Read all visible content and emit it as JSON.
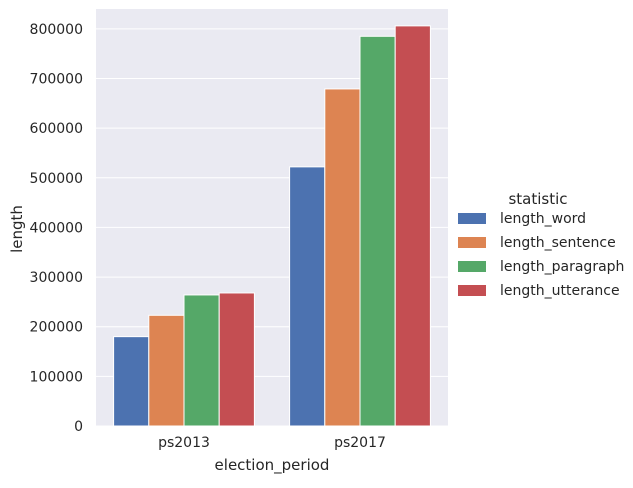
{
  "chart_data": {
    "type": "bar",
    "xlabel": "election_period",
    "ylabel": "length",
    "categories": [
      "ps2013",
      "ps2017"
    ],
    "ylim": [
      0,
      840000
    ],
    "yticks": [
      0,
      100000,
      200000,
      300000,
      400000,
      500000,
      600000,
      700000,
      800000
    ],
    "ytick_labels": [
      "0",
      "100000",
      "200000",
      "300000",
      "400000",
      "500000",
      "600000",
      "700000",
      "800000"
    ],
    "grid": true,
    "legend": {
      "title": "statistic",
      "placement": "right"
    },
    "series": [
      {
        "name": "length_word",
        "color": "#4c72b0",
        "values": [
          180000,
          522000
        ]
      },
      {
        "name": "length_sentence",
        "color": "#dd8452",
        "values": [
          223000,
          679000
        ]
      },
      {
        "name": "length_paragraph",
        "color": "#55a868",
        "values": [
          264000,
          785000
        ]
      },
      {
        "name": "length_utterance",
        "color": "#c44e52",
        "values": [
          268000,
          806000
        ]
      }
    ]
  }
}
